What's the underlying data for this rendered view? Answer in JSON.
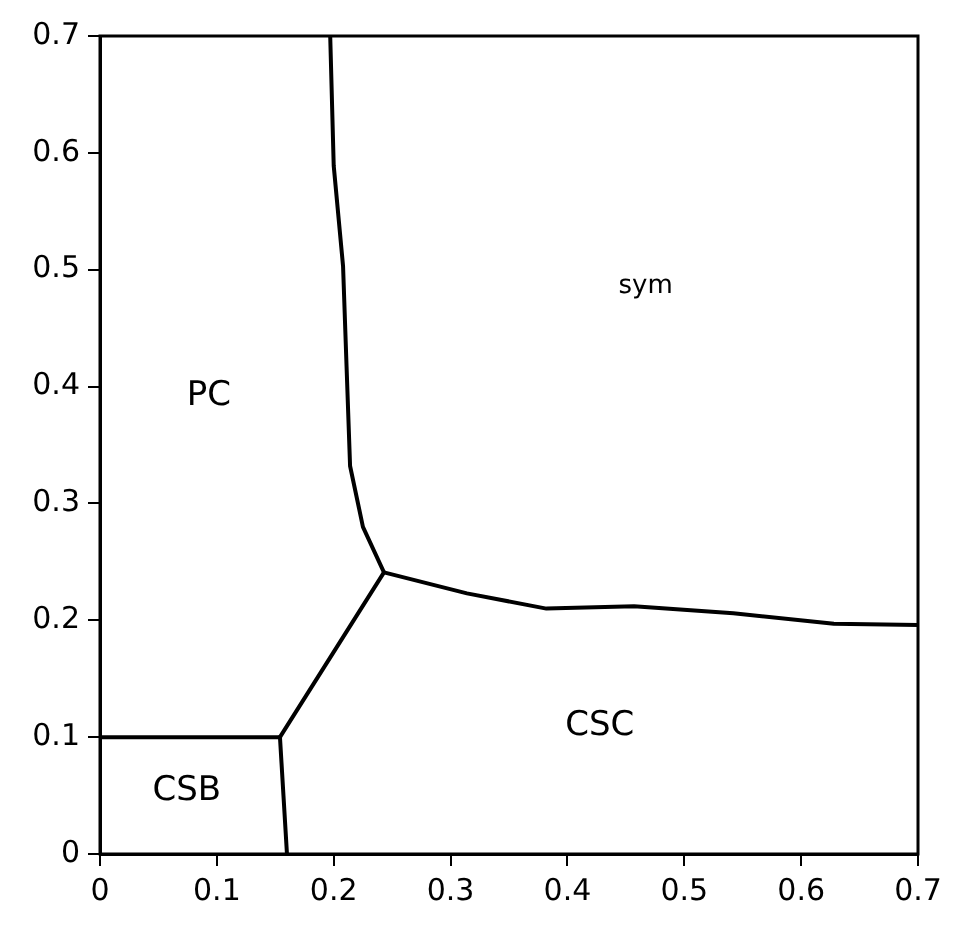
{
  "chart_data": {
    "type": "line",
    "xlim": [
      0,
      0.7
    ],
    "ylim": [
      0,
      0.7
    ],
    "xticks": [
      0,
      0.1,
      0.2,
      0.3,
      0.4,
      0.5,
      0.6,
      0.7
    ],
    "yticks": [
      0,
      0.1,
      0.2,
      0.3,
      0.4,
      0.5,
      0.6,
      0.7
    ],
    "grid": false,
    "legend": false,
    "marker": "none",
    "line_style": "solid",
    "series": [
      {
        "color": "#000000",
        "x": [
          0,
          0.154
        ],
        "values": [
          0.1,
          0.1
        ]
      },
      {
        "color": "#000000",
        "x": [
          0.154,
          0.157,
          0.16
        ],
        "values": [
          0.1,
          0.05,
          0
        ]
      },
      {
        "color": "#000000",
        "x": [
          0.154,
          0.243
        ],
        "values": [
          0.1,
          0.241
        ]
      },
      {
        "color": "#000000",
        "x": [
          0.243,
          0.225,
          0.214,
          0.211,
          0.208,
          0.2,
          0.197
        ],
        "values": [
          0.241,
          0.28,
          0.332,
          0.417,
          0.503,
          0.589,
          0.7
        ]
      },
      {
        "color": "#000000",
        "x": [
          0.243,
          0.314,
          0.382,
          0.457,
          0.542,
          0.628,
          0.7
        ],
        "values": [
          0.241,
          0.223,
          0.21,
          0.212,
          0.206,
          0.197,
          0.196
        ]
      }
    ],
    "annotations": [
      "PC",
      "sym",
      "CSC",
      "CSB"
    ]
  }
}
